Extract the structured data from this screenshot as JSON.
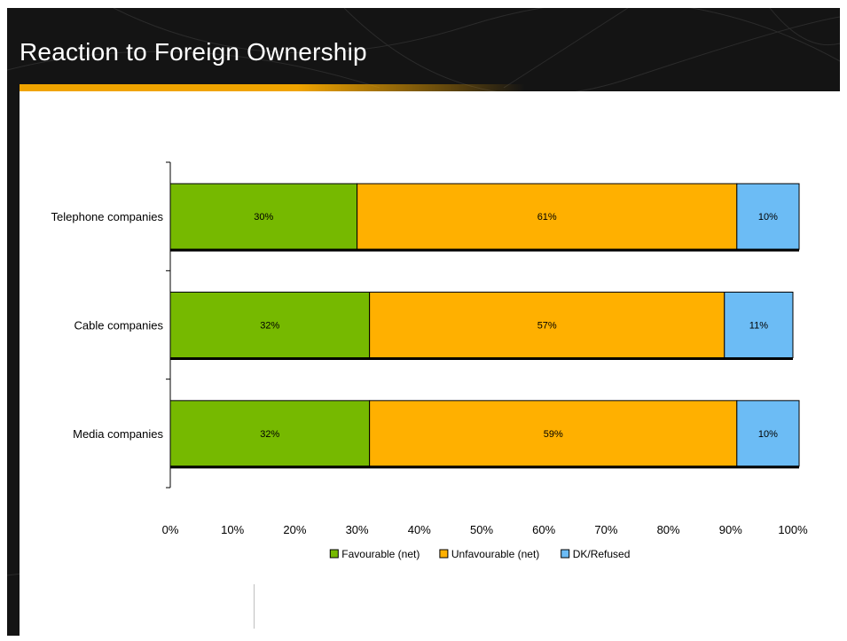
{
  "slide": {
    "title": "Reaction to Foreign Ownership"
  },
  "chart_data": {
    "type": "bar",
    "orientation": "horizontal",
    "stacked": true,
    "title": "",
    "xlabel": "",
    "ylabel": "",
    "categories": [
      "Telephone companies",
      "Cable companies",
      "Media companies"
    ],
    "series": [
      {
        "name": "Favourable (net)",
        "color": "#76b900",
        "values": [
          30,
          32,
          32
        ],
        "labels": [
          "30%",
          "32%",
          "32%"
        ]
      },
      {
        "name": "Unfavourable (net)",
        "color": "#ffb000",
        "values": [
          61,
          57,
          59
        ],
        "labels": [
          "61%",
          "57%",
          "59%"
        ]
      },
      {
        "name": "DK/Refused",
        "color": "#6cbcf5",
        "values": [
          10,
          11,
          10
        ],
        "labels": [
          "10%",
          "11%",
          "10%"
        ]
      }
    ],
    "xlim": [
      0,
      100
    ],
    "x_ticks": [
      "0%",
      "10%",
      "20%",
      "30%",
      "40%",
      "50%",
      "60%",
      "70%",
      "80%",
      "90%",
      "100%"
    ],
    "grid": false,
    "legend_position": "bottom"
  }
}
